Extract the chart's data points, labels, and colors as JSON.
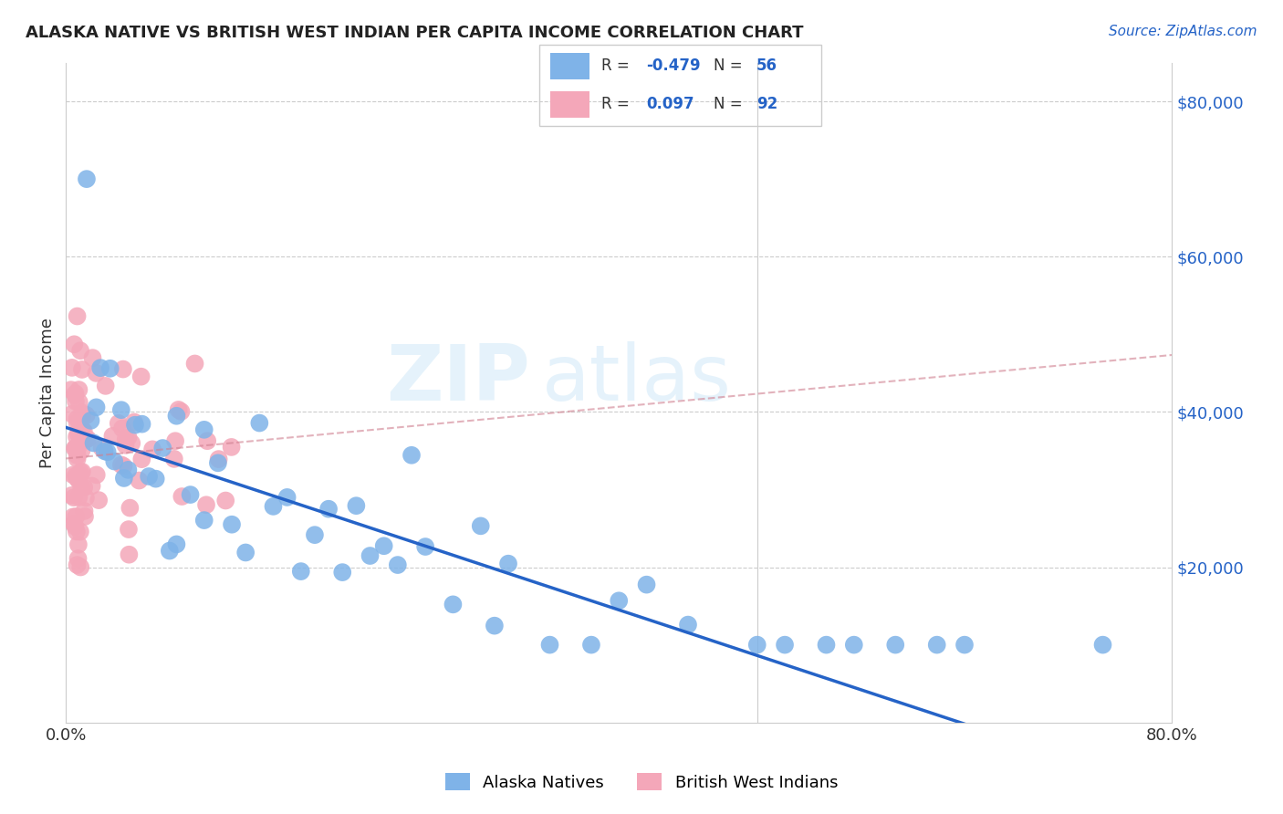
{
  "title": "ALASKA NATIVE VS BRITISH WEST INDIAN PER CAPITA INCOME CORRELATION CHART",
  "source": "Source: ZipAtlas.com",
  "ylabel": "Per Capita Income",
  "xlim": [
    0.0,
    0.8
  ],
  "ylim": [
    0,
    85000
  ],
  "alaska_color": "#7fb3e8",
  "bwi_color": "#f4a7b9",
  "alaska_R": -0.479,
  "alaska_N": 56,
  "bwi_R": 0.097,
  "bwi_N": 92,
  "alaska_line_color": "#2563c7",
  "bwi_line_color": "#d08090",
  "watermark_zip": "ZIP",
  "watermark_atlas": "atlas",
  "background_color": "#ffffff"
}
